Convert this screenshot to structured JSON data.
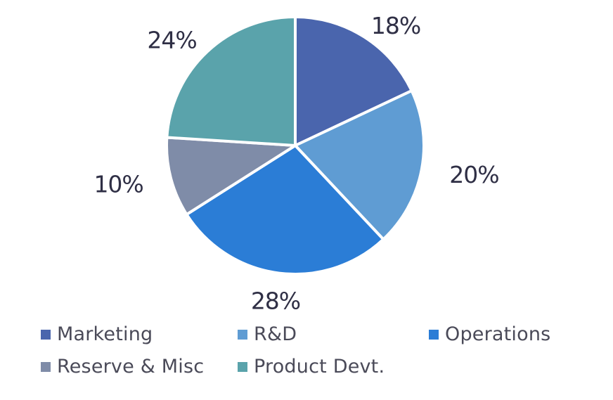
{
  "chart_data": {
    "type": "pie",
    "title": "",
    "categories": [
      "Marketing",
      "R&D",
      "Operations",
      "Reserve & Misc",
      "Product Devt."
    ],
    "values": [
      18,
      20,
      28,
      10,
      24
    ],
    "labels": [
      "18%",
      "20%",
      "28%",
      "10%",
      "24%"
    ],
    "colors": [
      "#4a65ad",
      "#5f9cd3",
      "#2b7dd6",
      "#7f8ca8",
      "#5aa3ab"
    ],
    "legend_position": "bottom",
    "start_angle_deg": 0,
    "direction": "clockwise"
  },
  "legend": {
    "items": [
      {
        "label": "Marketing",
        "color": "#4a65ad"
      },
      {
        "label": "R&D",
        "color": "#5f9cd3"
      },
      {
        "label": "Operations",
        "color": "#2b7dd6"
      },
      {
        "label": "Reserve & Misc",
        "color": "#7f8ca8"
      },
      {
        "label": "Product Devt.",
        "color": "#5aa3ab"
      }
    ]
  }
}
